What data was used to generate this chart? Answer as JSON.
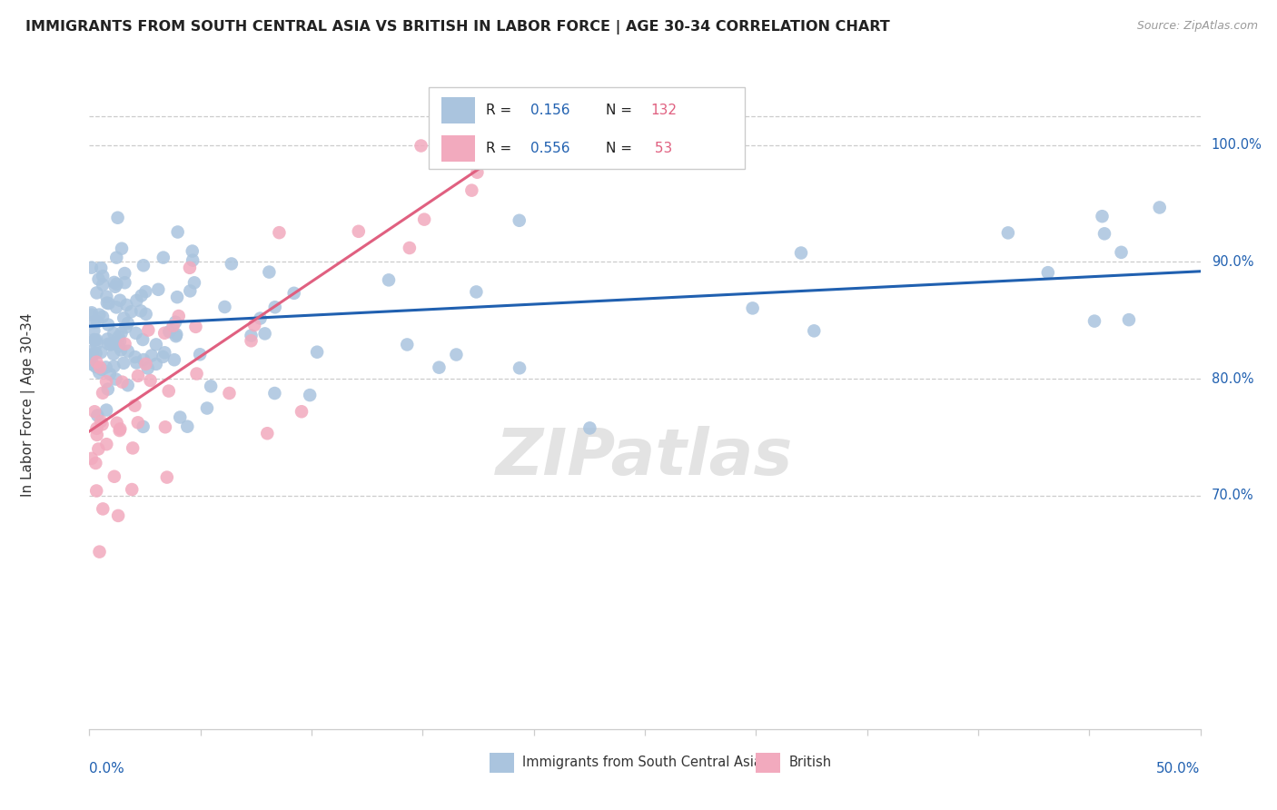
{
  "title": "IMMIGRANTS FROM SOUTH CENTRAL ASIA VS BRITISH IN LABOR FORCE | AGE 30-34 CORRELATION CHART",
  "source": "Source: ZipAtlas.com",
  "ylabel": "In Labor Force | Age 30-34",
  "blue_R": 0.156,
  "blue_N": 132,
  "pink_R": 0.556,
  "pink_N": 53,
  "blue_color": "#aac4de",
  "pink_color": "#f2aabe",
  "blue_line_color": "#2060b0",
  "pink_line_color": "#e06080",
  "legend_label_blue": "Immigrants from South Central Asia",
  "legend_label_pink": "British",
  "watermark": "ZIPatlas",
  "xmin": 0.0,
  "xmax": 0.5,
  "ymin": 0.5,
  "ymax": 1.055,
  "yticks": [
    0.7,
    0.8,
    0.9,
    1.0
  ],
  "ytick_labels": [
    "70.0%",
    "80.0%",
    "90.0%",
    "100.0%"
  ],
  "xtick_label_left": "0.0%",
  "xtick_label_right": "50.0%",
  "blue_line_x0": 0.0,
  "blue_line_y0": 0.845,
  "blue_line_x1": 0.5,
  "blue_line_y1": 0.892,
  "pink_line_x0": 0.0,
  "pink_line_y0": 0.755,
  "pink_line_x1": 0.195,
  "pink_line_y1": 1.005
}
